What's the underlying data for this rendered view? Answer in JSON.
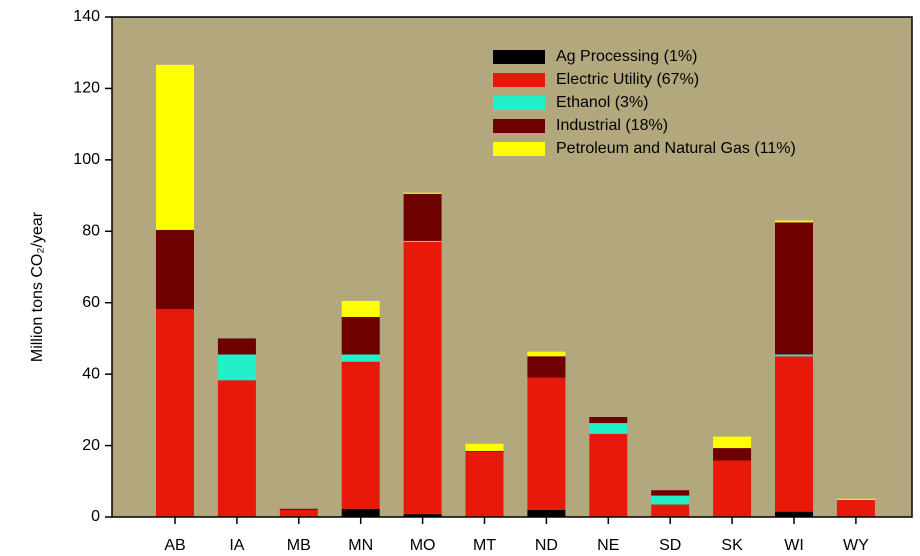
{
  "chart_data": {
    "type": "stacked_bar",
    "ylabel": "Million tons CO₂/year",
    "categories": [
      "AB",
      "IA",
      "MB",
      "MN",
      "MO",
      "MT",
      "ND",
      "NE",
      "SD",
      "SK",
      "WI",
      "WY"
    ],
    "series": [
      {
        "name": "Ag Processing (1%)",
        "color": "#000000",
        "values": [
          0,
          0,
          0,
          2.3,
          0.8,
          0,
          2,
          0,
          0,
          0,
          1.5,
          0
        ]
      },
      {
        "name": "Electric Utility (67%)",
        "color": "#e8190a",
        "values": [
          58.2,
          38.3,
          2,
          41.2,
          76.2,
          18.3,
          37,
          23.3,
          3.5,
          15.8,
          43.5,
          4.8
        ]
      },
      {
        "name": "Ethanol (3%)",
        "color": "#22f0c8",
        "values": [
          0,
          7.2,
          0,
          2,
          0.3,
          0,
          0,
          3,
          2.5,
          0,
          0.5,
          0
        ]
      },
      {
        "name": "Industrial (18%)",
        "color": "#6e0000",
        "values": [
          22.2,
          4.5,
          0.3,
          10.5,
          13.2,
          0.2,
          6,
          1.7,
          1.5,
          3.5,
          37,
          0
        ]
      },
      {
        "name": "Petroleum and Natural Gas (11%)",
        "color": "#ffff00",
        "values": [
          46.2,
          0,
          0,
          4.5,
          0.3,
          2,
          1.3,
          0,
          0,
          3.2,
          0.5,
          0.3
        ]
      }
    ],
    "ylim": [
      0,
      140
    ],
    "yticks": [
      0,
      20,
      40,
      60,
      80,
      100,
      120,
      140
    ],
    "background": "#b3a87d",
    "legend": "upper right"
  }
}
